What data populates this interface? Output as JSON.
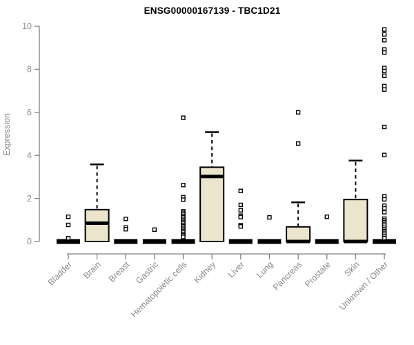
{
  "chart_data": {
    "type": "boxplot",
    "title": "ENSG00000167139 - TBC1D21",
    "xlabel": "",
    "ylabel": "Expression",
    "ylim": [
      0,
      10
    ],
    "yticks": [
      0,
      2,
      4,
      6,
      8,
      10
    ],
    "grid": false,
    "legend": "none",
    "categories": [
      "Bladder",
      "Brain",
      "Breast",
      "Gastric",
      "Hematopoietic cells",
      "Kidney",
      "Liver",
      "Lung",
      "Pancreas",
      "Prostate",
      "Skin",
      "Unknown / Other"
    ],
    "series": [
      {
        "category": "Bladder",
        "q1": 0,
        "median": 0,
        "q3": 0,
        "whisker_low": 0,
        "whisker_high": 0,
        "outliers": [
          1.15,
          0.77,
          0.15
        ]
      },
      {
        "category": "Brain",
        "q1": 0,
        "median": 0.85,
        "q3": 1.48,
        "whisker_low": 0,
        "whisker_high": 3.58,
        "outliers": []
      },
      {
        "category": "Breast",
        "q1": 0,
        "median": 0,
        "q3": 0,
        "whisker_low": 0,
        "whisker_high": 0,
        "outliers": [
          1.05,
          0.65,
          0.57
        ]
      },
      {
        "category": "Gastric",
        "q1": 0,
        "median": 0,
        "q3": 0,
        "whisker_low": 0,
        "whisker_high": 0,
        "outliers": [
          0.55
        ]
      },
      {
        "category": "Hematopoietic cells",
        "q1": 0,
        "median": 0,
        "q3": 0,
        "whisker_low": 0,
        "whisker_high": 0,
        "outliers": [
          5.75,
          2.62,
          2.06,
          1.94,
          1.4,
          1.33,
          1.26,
          1.19,
          1.12,
          1.05,
          0.98,
          0.91,
          0.84,
          0.77,
          0.7,
          0.63,
          0.56,
          0.49,
          0.42,
          0.35,
          0.28,
          0.21
        ]
      },
      {
        "category": "Kidney",
        "q1": 0,
        "median": 3.02,
        "q3": 3.45,
        "whisker_low": 0,
        "whisker_high": 5.08,
        "outliers": []
      },
      {
        "category": "Liver",
        "q1": 0,
        "median": 0,
        "q3": 0,
        "whisker_low": 0,
        "whisker_high": 0,
        "outliers": [
          2.35,
          1.7,
          1.45,
          1.2,
          1.13,
          0.76,
          0.7
        ]
      },
      {
        "category": "Lung",
        "q1": 0,
        "median": 0,
        "q3": 0,
        "whisker_low": 0,
        "whisker_high": 0,
        "outliers": [
          1.12
        ]
      },
      {
        "category": "Pancreas",
        "q1": 0,
        "median": 0,
        "q3": 0.68,
        "whisker_low": 0,
        "whisker_high": 1.82,
        "outliers": [
          6.0,
          4.55
        ]
      },
      {
        "category": "Prostate",
        "q1": 0,
        "median": 0,
        "q3": 0,
        "whisker_low": 0,
        "whisker_high": 0,
        "outliers": [
          1.15
        ]
      },
      {
        "category": "Skin",
        "q1": 0,
        "median": 0,
        "q3": 1.95,
        "whisker_low": 0,
        "whisker_high": 3.76,
        "outliers": []
      },
      {
        "category": "Unknown / Other",
        "q1": 0,
        "median": 0,
        "q3": 0,
        "whisker_low": 0,
        "whisker_high": 0,
        "outliers": [
          9.85,
          9.62,
          9.35,
          8.92,
          8.78,
          8.06,
          7.92,
          7.7,
          7.22,
          7.06,
          5.32,
          4.02,
          2.1,
          1.96,
          1.66,
          1.54,
          1.36,
          1.06,
          0.98,
          0.9,
          0.82,
          0.74,
          0.64,
          0.56,
          0.48,
          0.4,
          0.32,
          0.24,
          0.16
        ]
      }
    ],
    "colors": {
      "background": "#FFFFFF",
      "box_fill": "#EBE5CD",
      "box_border": "#000000",
      "median_color": "#000000",
      "whisker_color": "#000000",
      "outlier_stroke": "#000000",
      "outlier_fill": "#FFFFFF",
      "axis_color": "#7F7F7F",
      "tick_label_color": "#8A8A8A",
      "title_color": "#000000"
    }
  }
}
